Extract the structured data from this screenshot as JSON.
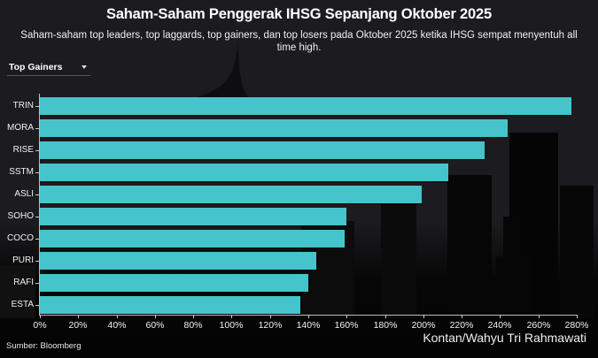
{
  "header": {
    "title": "Saham-Saham Penggerak IHSG Sepanjang Oktober 2025",
    "subtitle": "Saham-saham top leaders, top laggards, top gainers, dan top losers pada Oktober 2025 ketika IHSG sempat menyentuh all time high."
  },
  "dropdown": {
    "selected": "Top Gainers",
    "icon": "caret-down-icon"
  },
  "footer": {
    "source": "Sumber: Bloomberg",
    "credit": "Kontan/Wahyu Tri Rahmawati"
  },
  "colors": {
    "bar": "#45c5cb",
    "background": "#1c1b1f"
  },
  "chart_data": {
    "type": "bar",
    "orientation": "horizontal",
    "title": "Saham-Saham Penggerak IHSG Sepanjang Oktober 2025",
    "subtitle": "Saham-saham top leaders, top laggards, top gainers, dan top losers pada Oktober 2025 ketika IHSG sempat menyentuh all time high.",
    "categories": [
      "TRIN",
      "MORA",
      "RISE",
      "SSTM",
      "ASLI",
      "SOHO",
      "COCO",
      "PURI",
      "RAFI",
      "ESTA"
    ],
    "values": [
      277,
      244,
      232,
      213,
      199,
      160,
      159,
      144,
      140,
      136
    ],
    "xlabel": "",
    "ylabel": "",
    "xlim": [
      0,
      280
    ],
    "x_ticks": [
      "0%",
      "20%",
      "40%",
      "60%",
      "80%",
      "100%",
      "120%",
      "140%",
      "160%",
      "180%",
      "200%",
      "220%",
      "240%",
      "260%",
      "280%"
    ],
    "unit": "%",
    "grid": false,
    "legend": null,
    "filter": "Top Gainers",
    "source": "Sumber: Bloomberg"
  }
}
